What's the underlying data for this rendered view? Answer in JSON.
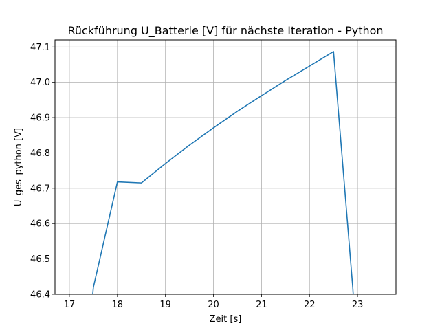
{
  "chart_data": {
    "type": "line",
    "title": "Rückführung U_Batterie [V] für nächste Iteration - Python",
    "xlabel": "Zeit [s]",
    "ylabel": "U_ges_python [V]",
    "xlim": [
      16.7,
      23.8
    ],
    "ylim": [
      46.4,
      47.12
    ],
    "xticks": [
      17,
      18,
      19,
      20,
      21,
      22,
      23
    ],
    "yticks": [
      46.4,
      46.5,
      46.6,
      46.7,
      46.8,
      46.9,
      47.0,
      47.1
    ],
    "xtick_labels": [
      "17",
      "18",
      "19",
      "20",
      "21",
      "22",
      "23"
    ],
    "ytick_labels": [
      "46.4",
      "46.5",
      "46.6",
      "46.7",
      "46.8",
      "46.9",
      "47.0",
      "47.1"
    ],
    "grid": true,
    "colors": {
      "series": "#1f77b4",
      "grid": "#b0b0b0",
      "axes": "#000000"
    },
    "series": [
      {
        "x": [
          17.45,
          17.5,
          18.0,
          18.5,
          19.0,
          19.5,
          20.0,
          20.5,
          21.0,
          21.5,
          22.0,
          22.5,
          22.9,
          22.93
        ],
        "y": [
          46.35,
          46.42,
          46.718,
          46.715,
          46.77,
          46.822,
          46.871,
          46.918,
          46.962,
          47.005,
          47.046,
          47.087,
          46.42,
          46.36
        ]
      }
    ]
  }
}
